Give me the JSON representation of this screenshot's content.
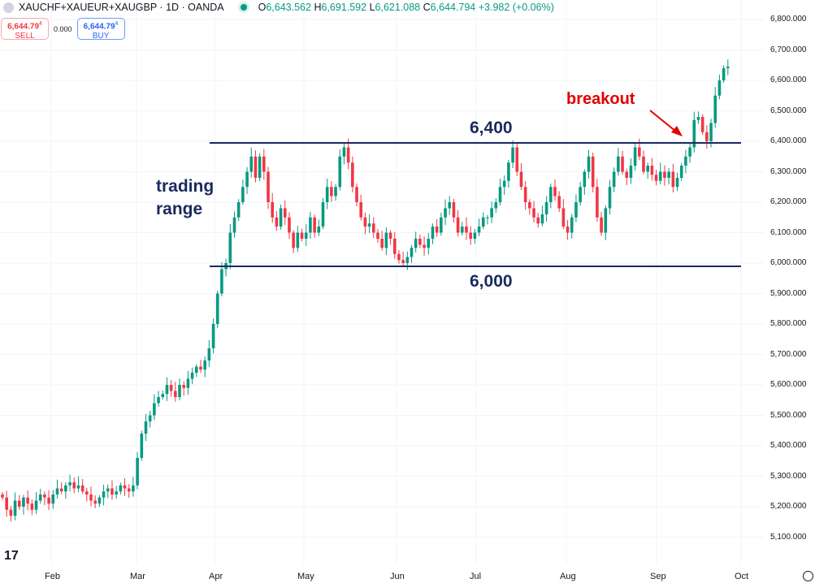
{
  "header": {
    "symbol": "XAUCHF+XAUEUR+XAUGBP · 1D · OANDA",
    "o_label": "O",
    "o": "6,643.562",
    "h_label": "H",
    "h": "6,691.592",
    "l_label": "L",
    "l": "6,621.088",
    "c_label": "C",
    "c": "6,644.794",
    "change": "+3.982 (+0.06%)"
  },
  "trade": {
    "sell_price": "6,644.79",
    "sell_sup": "4",
    "sell_label": "SELL",
    "spread": "0.000",
    "buy_price": "6,644.79",
    "buy_sup": "4",
    "buy_label": "BUY"
  },
  "annotations": {
    "range_line1": "trading",
    "range_line2": "range",
    "top_level": "6,400",
    "bottom_level": "6,000",
    "breakout": "breakout"
  },
  "colors": {
    "up": "#089981",
    "down": "#f23645",
    "level_line": "#1a2a5e",
    "breakout": "#e00000"
  },
  "chart_data": {
    "type": "candlestick",
    "title": "XAUCHF+XAUEUR+XAUGBP · 1D · OANDA",
    "ylim": [
      5050,
      6840
    ],
    "yticks": [
      "6,800.000",
      "6,700.000",
      "6,600.000",
      "6,500.000",
      "6,400.000",
      "6,300.000",
      "6,200.000",
      "6,100.000",
      "6,000.000",
      "5,900.000",
      "5,800.000",
      "5,700.000",
      "5,600.000",
      "5,500.000",
      "5,400.000",
      "5,300.000",
      "5,200.000",
      "5,100.000"
    ],
    "ytick_values": [
      6800,
      6700,
      6600,
      6500,
      6400,
      6300,
      6200,
      6100,
      6000,
      5900,
      5800,
      5700,
      5600,
      5500,
      5400,
      5300,
      5200,
      5100
    ],
    "xticks": [
      "Feb",
      "Mar",
      "Apr",
      "May",
      "Jun",
      "Jul",
      "Aug",
      "Sep",
      "Oct"
    ],
    "levels": [
      6400,
      6000
    ],
    "start_open": 5240,
    "closes": [
      5230,
      5190,
      5170,
      5220,
      5200,
      5230,
      5210,
      5190,
      5220,
      5240,
      5230,
      5210,
      5240,
      5260,
      5250,
      5270,
      5280,
      5260,
      5270,
      5250,
      5240,
      5220,
      5210,
      5230,
      5250,
      5260,
      5240,
      5250,
      5270,
      5260,
      5250,
      5270,
      5360,
      5440,
      5480,
      5500,
      5540,
      5560,
      5570,
      5600,
      5580,
      5560,
      5600,
      5590,
      5620,
      5640,
      5660,
      5650,
      5680,
      5720,
      5800,
      5900,
      5980,
      6000,
      6100,
      6150,
      6200,
      6250,
      6300,
      6350,
      6280,
      6350,
      6300,
      6200,
      6150,
      6120,
      6180,
      6150,
      6100,
      6050,
      6100,
      6080,
      6100,
      6150,
      6100,
      6120,
      6200,
      6250,
      6220,
      6250,
      6350,
      6380,
      6330,
      6250,
      6200,
      6150,
      6120,
      6130,
      6100,
      6080,
      6050,
      6100,
      6080,
      6030,
      6010,
      6000,
      6020,
      6050,
      6080,
      6060,
      6050,
      6080,
      6120,
      6100,
      6150,
      6180,
      6200,
      6150,
      6100,
      6120,
      6100,
      6080,
      6100,
      6120,
      6150,
      6150,
      6180,
      6200,
      6250,
      6270,
      6330,
      6380,
      6300,
      6250,
      6200,
      6180,
      6150,
      6130,
      6160,
      6200,
      6250,
      6220,
      6180,
      6120,
      6100,
      6150,
      6200,
      6250,
      6300,
      6350,
      6250,
      6150,
      6100,
      6180,
      6250,
      6300,
      6350,
      6300,
      6280,
      6320,
      6380,
      6350,
      6300,
      6320,
      6290,
      6270,
      6300,
      6280,
      6300,
      6250,
      6280,
      6320,
      6350,
      6380,
      6470,
      6480,
      6430,
      6400,
      6460,
      6550,
      6600,
      6640,
      6645
    ]
  }
}
